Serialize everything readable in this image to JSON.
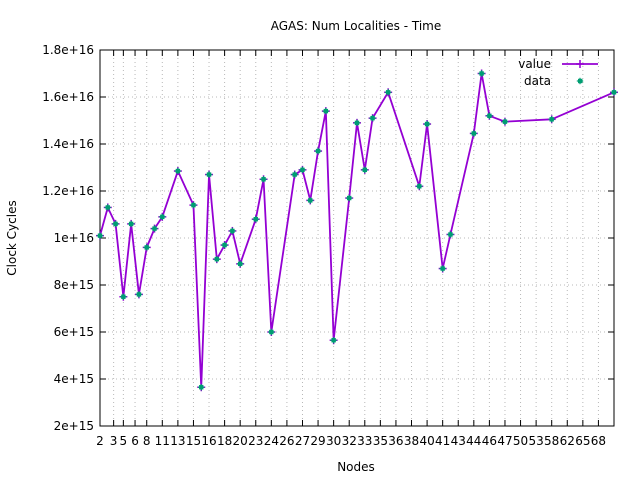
{
  "chart_data": {
    "type": "line",
    "title": "AGAS: Num Localities - Time",
    "xlabel": "Nodes",
    "ylabel": "Clock Cycles",
    "ylim": [
      2000000000000000.0,
      1.8e+16
    ],
    "grid": true,
    "legend_position": "top-right",
    "x_tick_positions": [
      2,
      3.75,
      5,
      6.5,
      8,
      10,
      12,
      14,
      16,
      18,
      20,
      22,
      24,
      26,
      28,
      30,
      32,
      34,
      36,
      38,
      40,
      42,
      44,
      46,
      48,
      50,
      52,
      54,
      56,
      58,
      60,
      62,
      64,
      66
    ],
    "x_tick_labels": [
      "2",
      "3",
      "5",
      "6",
      "8",
      "11",
      "13",
      "15",
      "16",
      "18",
      "20",
      "23",
      "24",
      "26",
      "27",
      "29",
      "30",
      "32",
      "33",
      "35",
      "36",
      "38",
      "40",
      "41",
      "43",
      "44",
      "46",
      "47",
      "50",
      "53",
      "58",
      "62",
      "65",
      "68"
    ],
    "y_ticks": [
      2000000000000000.0,
      4000000000000000.0,
      6000000000000000.0,
      8000000000000000.0,
      1e+16,
      1.2e+16,
      1.4e+16,
      1.6e+16,
      1.8e+16
    ],
    "y_tick_labels": [
      "2e+15",
      "4e+15",
      "6e+15",
      "8e+15",
      "1e+16",
      "1.2e+16",
      "1.4e+16",
      "1.6e+16",
      "1.8e+16"
    ],
    "series": [
      {
        "name": "value",
        "color": "#9400d3",
        "style": "line",
        "points": [
          [
            2,
            1.01e+16
          ],
          [
            3,
            1.13e+16
          ],
          [
            4,
            1.06e+16
          ],
          [
            5,
            7500000000000000.0
          ],
          [
            6,
            1.06e+16
          ],
          [
            7,
            7600000000000000.0
          ],
          [
            8,
            9600000000000000.0
          ],
          [
            9,
            1.04e+16
          ],
          [
            10,
            1.09e+16
          ],
          [
            12,
            1.285e+16
          ],
          [
            14,
            1.14e+16
          ],
          [
            15,
            3650000000000000.0
          ],
          [
            16,
            1.27e+16
          ],
          [
            17,
            9100000000000000.0
          ],
          [
            18,
            9700000000000000.0
          ],
          [
            19,
            1.03e+16
          ],
          [
            20,
            8900000000000000.0
          ],
          [
            22,
            1.08e+16
          ],
          [
            23,
            1.25e+16
          ],
          [
            24,
            6000000000000000.0
          ],
          [
            27,
            1.27e+16
          ],
          [
            28,
            1.29e+16
          ],
          [
            29,
            1.16e+16
          ],
          [
            30,
            1.37e+16
          ],
          [
            31,
            1.54e+16
          ],
          [
            32,
            5650000000000000.0
          ],
          [
            34,
            1.17e+16
          ],
          [
            35,
            1.49e+16
          ],
          [
            36,
            1.29e+16
          ],
          [
            37,
            1.51e+16
          ],
          [
            39,
            1.62e+16
          ],
          [
            43,
            1.22e+16
          ],
          [
            44,
            1.485e+16
          ],
          [
            46,
            8700000000000000.0
          ],
          [
            47,
            1.015e+16
          ],
          [
            50,
            1.445e+16
          ],
          [
            51,
            1.7e+16
          ],
          [
            52,
            1.52e+16
          ],
          [
            54,
            1.495e+16
          ],
          [
            60,
            1.505e+16
          ],
          [
            68,
            1.62e+16
          ]
        ]
      },
      {
        "name": "data",
        "color": "#009e73",
        "style": "points",
        "points": [
          [
            2,
            1.01e+16
          ],
          [
            3,
            1.13e+16
          ],
          [
            4,
            1.06e+16
          ],
          [
            5,
            7500000000000000.0
          ],
          [
            6,
            1.06e+16
          ],
          [
            7,
            7600000000000000.0
          ],
          [
            8,
            9600000000000000.0
          ],
          [
            9,
            1.04e+16
          ],
          [
            10,
            1.09e+16
          ],
          [
            12,
            1.285e+16
          ],
          [
            14,
            1.14e+16
          ],
          [
            15,
            3650000000000000.0
          ],
          [
            16,
            1.27e+16
          ],
          [
            17,
            9100000000000000.0
          ],
          [
            18,
            9700000000000000.0
          ],
          [
            19,
            1.03e+16
          ],
          [
            20,
            8900000000000000.0
          ],
          [
            22,
            1.08e+16
          ],
          [
            23,
            1.25e+16
          ],
          [
            24,
            6000000000000000.0
          ],
          [
            27,
            1.27e+16
          ],
          [
            28,
            1.29e+16
          ],
          [
            29,
            1.16e+16
          ],
          [
            30,
            1.37e+16
          ],
          [
            31,
            1.54e+16
          ],
          [
            32,
            5650000000000000.0
          ],
          [
            34,
            1.17e+16
          ],
          [
            35,
            1.49e+16
          ],
          [
            36,
            1.29e+16
          ],
          [
            37,
            1.51e+16
          ],
          [
            39,
            1.62e+16
          ],
          [
            43,
            1.22e+16
          ],
          [
            44,
            1.485e+16
          ],
          [
            46,
            8700000000000000.0
          ],
          [
            47,
            1.015e+16
          ],
          [
            50,
            1.445e+16
          ],
          [
            51,
            1.7e+16
          ],
          [
            52,
            1.52e+16
          ],
          [
            54,
            1.495e+16
          ],
          [
            60,
            1.505e+16
          ],
          [
            68,
            1.62e+16
          ]
        ]
      }
    ]
  }
}
